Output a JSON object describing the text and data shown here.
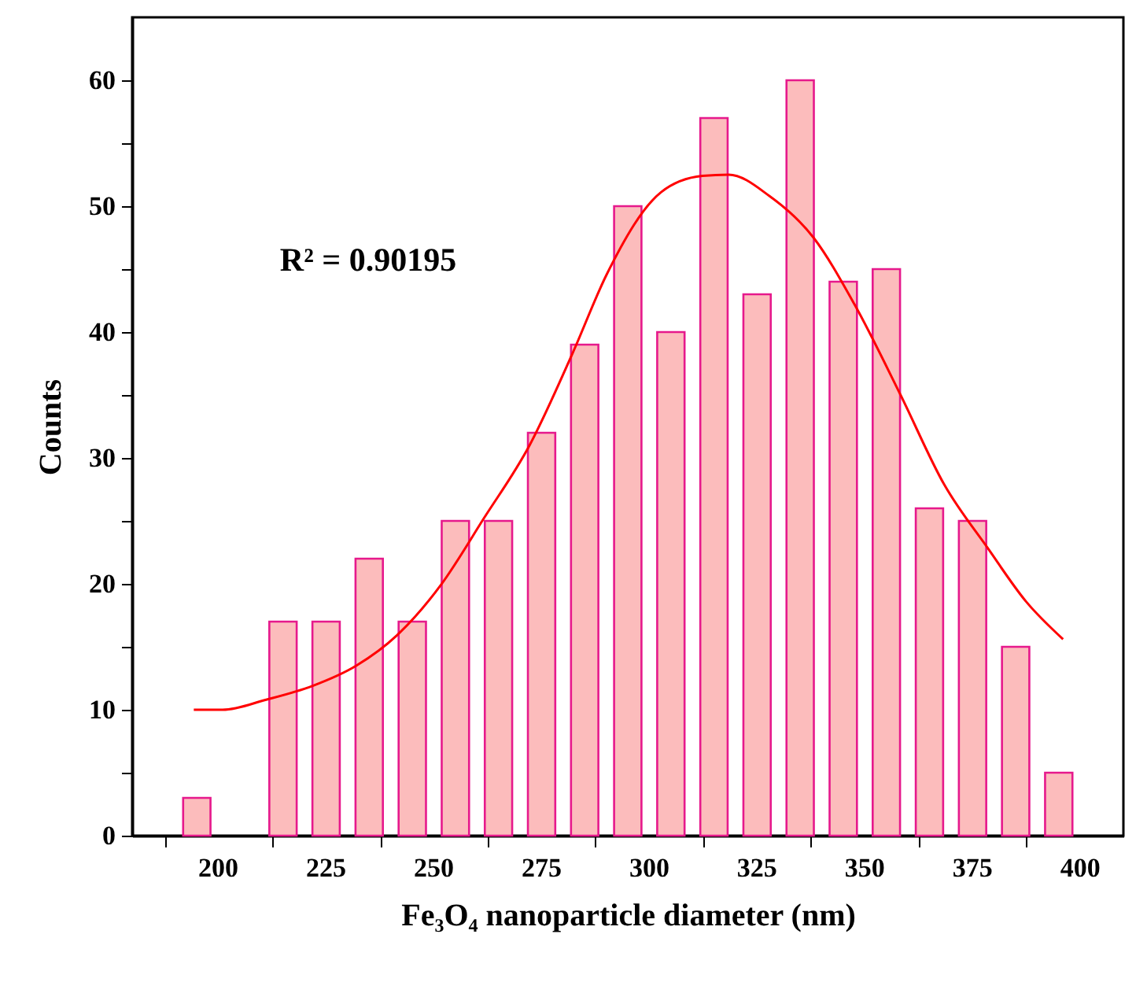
{
  "chart_data": {
    "type": "histogram",
    "xlabel": "Fe₃O₄ nanoparticle diameter (nm)",
    "ylabel": "Counts",
    "annotations": [
      "R² = 0.90195"
    ],
    "bins": [
      190,
      200,
      210,
      220,
      230,
      240,
      250,
      260,
      270,
      280,
      290,
      300,
      310,
      320,
      330,
      340,
      350,
      360,
      370,
      380,
      390,
      400
    ],
    "series": [
      {
        "color": "#fcbcbc",
        "values": [
          3,
          0,
          17,
          17,
          22,
          17,
          25,
          25,
          32,
          39,
          50,
          40,
          57,
          43,
          60,
          44,
          45,
          26,
          25,
          15,
          5
        ]
      },
      {
        "type": "line",
        "color": "#ff0000",
        "x": [
          194.3,
          201.0,
          211.1,
          221.9,
          232.0,
          241.4,
          251.6,
          261.6,
          272.2,
          282.3,
          290.0,
          302.7,
          312.3,
          318.4,
          327.9,
          338.1,
          347.6,
          358.3,
          368.4,
          378.6,
          387.4,
          396.0
        ],
        "values": [
          10.0,
          10.0,
          10.8,
          11.9,
          13.5,
          15.9,
          19.9,
          25.2,
          31.0,
          38.4,
          44.5,
          51.1,
          52.4,
          52.5,
          50.8,
          47.5,
          42.2,
          35.0,
          27.9,
          22.8,
          18.6,
          15.6
        ]
      }
    ],
    "xlim": [
      180,
      410
    ],
    "xticks": [
      {
        "value": 187.5,
        "label": null
      },
      200,
      {
        "value": 212.5,
        "label": null
      },
      225,
      {
        "value": 237.5,
        "label": null
      },
      250,
      {
        "value": 262.5,
        "label": null
      },
      275,
      {
        "value": 287.5,
        "label": null
      },
      300,
      {
        "value": 312.5,
        "label": null
      },
      325,
      {
        "value": 337.5,
        "label": null
      },
      350,
      {
        "value": 362.5,
        "label": null
      },
      375,
      {
        "value": 387.5,
        "label": null
      },
      400
    ],
    "ylim": [
      0,
      65
    ],
    "yticks": [
      0,
      {
        "value": 5,
        "label": null
      },
      10,
      {
        "value": 15,
        "label": null
      },
      20,
      {
        "value": 25,
        "label": null
      },
      30,
      {
        "value": 35,
        "label": null
      },
      40,
      {
        "value": 45,
        "label": null
      },
      50,
      {
        "value": 55,
        "label": null
      },
      60
    ],
    "marker": "none"
  }
}
